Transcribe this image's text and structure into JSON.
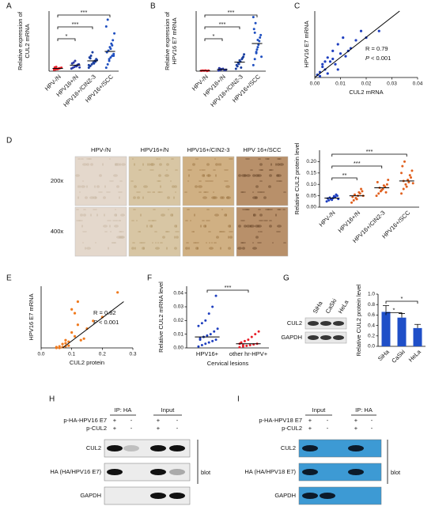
{
  "chart_data": [
    {
      "type": "strip",
      "panel": "A",
      "y_label": [
        "Relative expression of",
        "CUL2 mRNA"
      ],
      "categories": [
        "HPV-/N",
        "HPV16+/N",
        "HPV16+/CIN2-3",
        "HPV16+/SCC"
      ],
      "colors": [
        "#e8202a",
        "#2b3aa8",
        "#1a3fa0",
        "#1f4fc0"
      ],
      "ylim": [
        0,
        0.035
      ],
      "groups": [
        [
          0.0008,
          0.001,
          0.0012,
          0.0015,
          0.0018,
          0.002,
          0.0022,
          0.0025,
          0.0012,
          0.0016
        ],
        [
          0.0015,
          0.002,
          0.0025,
          0.003,
          0.0035,
          0.004,
          0.0045,
          0.005,
          0.006,
          0.0028,
          0.0038,
          0.0022
        ],
        [
          0.002,
          0.003,
          0.004,
          0.005,
          0.006,
          0.007,
          0.008,
          0.009,
          0.011,
          0.0045,
          0.0055,
          0.0065,
          0.0035,
          0.0075
        ],
        [
          0.002,
          0.004,
          0.006,
          0.008,
          0.009,
          0.01,
          0.011,
          0.012,
          0.014,
          0.016,
          0.018,
          0.022,
          0.026,
          0.03,
          0.007,
          0.013,
          0.015,
          0.009
        ]
      ],
      "means": [
        0.0016,
        0.0035,
        0.006,
        0.0115
      ],
      "significance": [
        {
          "from": 0,
          "to": 1,
          "label": "*"
        },
        {
          "from": 0,
          "to": 2,
          "label": "***"
        },
        {
          "from": 0,
          "to": 3,
          "label": "***"
        }
      ]
    },
    {
      "type": "strip",
      "panel": "B",
      "y_label": [
        "Relative expression of",
        "HPV16 E7 mRNA"
      ],
      "categories": [
        "HPV-/N",
        "HPV16+/N",
        "HPV16+/CIN2-3",
        "HPV16+/SCC"
      ],
      "colors": [
        "#e8202a",
        "#2b3aa8",
        "#1a3fa0",
        "#1f4fc0"
      ],
      "ylim": [
        0,
        0.05
      ],
      "groups": [
        [
          0.0003,
          0.0005,
          0.0004,
          0.0006,
          0.0002,
          0.0005
        ],
        [
          0.0005,
          0.001,
          0.0015,
          0.002,
          0.0008,
          0.0012,
          0.0025,
          0.0018
        ],
        [
          0.002,
          0.004,
          0.006,
          0.008,
          0.01,
          0.012,
          0.005,
          0.007,
          0.009,
          0.003,
          0.011,
          0.014
        ],
        [
          0.005,
          0.01,
          0.015,
          0.02,
          0.025,
          0.03,
          0.035,
          0.04,
          0.018,
          0.022,
          0.028,
          0.012,
          0.045,
          0.032,
          0.016,
          0.026
        ]
      ],
      "means": [
        0.0004,
        0.0014,
        0.0075,
        0.023
      ],
      "significance": [
        {
          "from": 0,
          "to": 1,
          "label": "*"
        },
        {
          "from": 0,
          "to": 2,
          "label": "***"
        },
        {
          "from": 0,
          "to": 3,
          "label": "***"
        }
      ]
    },
    {
      "type": "scatter",
      "panel": "C",
      "y_label": [
        "HPV16 E7 mRNA"
      ],
      "x_label": "CUL2 mRNA",
      "color": "#1f3fbf",
      "xlim": [
        0,
        0.04
      ],
      "ylim": [
        0,
        0.05
      ],
      "xticks": [
        {
          "value": 0,
          "label": "0.00"
        },
        0.01,
        0.02,
        0.03,
        0.04
      ],
      "x": [
        0.001,
        0.002,
        0.003,
        0.004,
        0.005,
        0.006,
        0.007,
        0.008,
        0.009,
        0.01,
        0.011,
        0.012,
        0.014,
        0.016,
        0.018,
        0.003,
        0.005,
        0.007,
        0.009,
        0.013,
        0.02,
        0.025,
        0.002,
        0.004
      ],
      "values": [
        0.002,
        0.004,
        0.01,
        0.006,
        0.015,
        0.012,
        0.02,
        0.01,
        0.025,
        0.018,
        0.03,
        0.016,
        0.022,
        0.028,
        0.035,
        0.008,
        0.003,
        0.014,
        0.006,
        0.02,
        0.03,
        0.035,
        0.001,
        0.012
      ],
      "fit_line": {
        "x": [
          0,
          0.033
        ],
        "y": [
          0,
          0.05
        ]
      },
      "r_text": "R = 0.79",
      "p_symbol": "P",
      "p_text": "< 0.001"
    },
    {
      "type": "strip",
      "panel": "D",
      "y_label": [
        "Relative CUL2 protein level"
      ],
      "categories": [
        "HPV-/N",
        "HPV16+/N",
        "HPV16+/CIN2-3",
        "HPV16+/SCC"
      ],
      "colors": [
        "#1f3fbf",
        "#e0601f",
        "#e0601f",
        "#e0601f"
      ],
      "ylim": [
        0,
        0.25
      ],
      "yticks": [
        {
          "value": 0,
          "label": "0.00"
        },
        0.05,
        {
          "value": 0.1,
          "label": "0.10"
        },
        0.15,
        {
          "value": 0.2,
          "label": "0.20"
        }
      ],
      "groups": [
        [
          0.025,
          0.03,
          0.035,
          0.04,
          0.045,
          0.05,
          0.038,
          0.042,
          0.032,
          0.048,
          0.055,
          0.036
        ],
        [
          0.02,
          0.03,
          0.04,
          0.05,
          0.06,
          0.07,
          0.045,
          0.055,
          0.035,
          0.065,
          0.08,
          0.05
        ],
        [
          0.05,
          0.06,
          0.07,
          0.08,
          0.09,
          0.1,
          0.11,
          0.085,
          0.075,
          0.095,
          0.065,
          0.12
        ],
        [
          0.06,
          0.08,
          0.1,
          0.12,
          0.14,
          0.16,
          0.18,
          0.2,
          0.09,
          0.11,
          0.13,
          0.105,
          0.15,
          0.115
        ]
      ],
      "means": [
        0.04,
        0.05,
        0.085,
        0.115
      ],
      "significance": [
        {
          "from": 0,
          "to": 1,
          "label": "**"
        },
        {
          "from": 0,
          "to": 2,
          "label": "***"
        },
        {
          "from": 0,
          "to": 3,
          "label": "***"
        }
      ]
    },
    {
      "type": "scatter",
      "panel": "E",
      "y_label": [
        "HPV16 E7 mRNA"
      ],
      "x_label": "CUL2 protein",
      "color": "#f07a1e",
      "xlim": [
        0,
        0.3
      ],
      "ylim": [
        0,
        0.8
      ],
      "xticks": [
        {
          "value": 0,
          "label": "0.0"
        },
        0.1,
        0.2,
        0.3
      ],
      "x": [
        0.05,
        0.06,
        0.07,
        0.08,
        0.09,
        0.1,
        0.11,
        0.12,
        0.13,
        0.15,
        0.17,
        0.2,
        0.25,
        0.06,
        0.08,
        0.1,
        0.12,
        0.09,
        0.07,
        0.11,
        0.14,
        0.05,
        0.08
      ],
      "values": [
        0.01,
        0.02,
        0.05,
        0.1,
        0.03,
        0.2,
        0.15,
        0.3,
        0.1,
        0.25,
        0.35,
        0.4,
        0.72,
        0,
        0.02,
        0.5,
        0.6,
        0.08,
        0.01,
        0.45,
        0.12,
        0,
        0.06
      ],
      "fit_line": {
        "x": [
          0.07,
          0.27
        ],
        "y": [
          0,
          0.6
        ]
      },
      "r_text": "R = 0.82",
      "p_symbol": "P",
      "p_text": "< 0.001"
    },
    {
      "type": "strip",
      "panel": "F",
      "y_label": [
        "Relative CUL2 mRNA level"
      ],
      "x_label": "Cervical lesions",
      "categories": [
        "HPV16+",
        "other hr-HPV+"
      ],
      "colors": [
        "#1f3fbf",
        "#e8202a"
      ],
      "ylim": [
        0,
        0.045
      ],
      "yticks": [
        {
          "value": 0,
          "label": "0.00"
        },
        0.01,
        0.02,
        0.03,
        0.04
      ],
      "groups": [
        [
          0.001,
          0.002,
          0.003,
          0.004,
          0.005,
          0.006,
          0.007,
          0.008,
          0.009,
          0.01,
          0.012,
          0.014,
          0.016,
          0.018,
          0.02,
          0.025,
          0.03,
          0.038,
          0.006,
          0.008
        ],
        [
          0.0005,
          0.001,
          0.0015,
          0.002,
          0.0025,
          0.003,
          0.004,
          0.005,
          0.006,
          0.008,
          0.01,
          0.012,
          0.003,
          0.002
        ]
      ],
      "means": [
        0.008,
        0.003
      ],
      "significance": [
        {
          "from": 0,
          "to": 1,
          "label": "***"
        }
      ]
    },
    {
      "type": "bar",
      "panel": "G",
      "y_label": [
        "Relative CUL2 protein level"
      ],
      "color": "#1f4fc8",
      "categories": [
        "SiHa",
        "CaSki",
        "HeLa"
      ],
      "values": [
        0.66,
        0.55,
        0.35
      ],
      "errors": [
        0.12,
        0.08,
        0.07
      ],
      "ylim": [
        0,
        1.0
      ],
      "yticks": [
        {
          "value": 0,
          "label": "0.0"
        },
        0.2,
        0.4,
        0.6,
        0.8,
        {
          "value": 1,
          "label": "1.0"
        }
      ],
      "significance": [
        {
          "from": 0,
          "to": 1,
          "label": "*"
        },
        {
          "from": 0,
          "to": 2,
          "label": "*"
        }
      ]
    }
  ],
  "micrographs": {
    "columns": [
      "HPV-/N",
      "HPV16+/N",
      "HPV16+/CIN2-3",
      "HPV 16+/SCC"
    ],
    "rows": [
      "200x",
      "400x"
    ]
  },
  "blots": [
    {
      "lanes": [
        "SiHa",
        "CaSki",
        "HeLa"
      ],
      "rows": [
        "CUL2",
        "GAPDH"
      ]
    },
    {
      "panel": "H",
      "groups": [
        "IP: HA",
        "Input"
      ],
      "conditions": [
        {
          "name": "p-HA-HPV16 E7",
          "signs": [
            "+",
            "-",
            "+",
            "-"
          ]
        },
        {
          "name": "p-CUL2",
          "signs": [
            "+",
            "-",
            "+",
            "-"
          ]
        }
      ],
      "rows": [
        "CUL2",
        "HA (HA/HPV16 E7)",
        "GAPDH"
      ],
      "blot_label": "blot"
    },
    {
      "panel": "I",
      "groups": [
        "Input",
        "IP: HA"
      ],
      "conditions": [
        {
          "name": "p-HA-HPV18 E7",
          "signs": [
            "+",
            "-",
            "+",
            "-"
          ]
        },
        {
          "name": "p-CUL2",
          "signs": [
            "+",
            "-",
            "+",
            "-"
          ]
        }
      ],
      "rows": [
        "CUL2",
        "HA (HA/HPV18 E7)",
        "GAPDH"
      ],
      "blot_label": "blot"
    }
  ]
}
